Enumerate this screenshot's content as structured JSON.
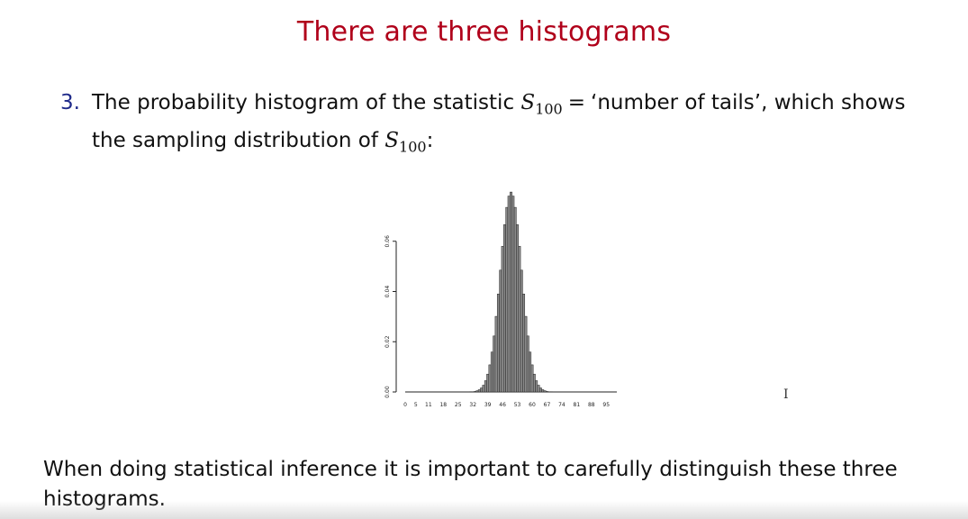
{
  "slide": {
    "title": "There are three histograms",
    "item_number": "3.",
    "text_before_var": "The probability histogram of the statistic",
    "var_letter": "S",
    "var_sub": "100",
    "equals": "=",
    "text_after_eq": "‘number of tails’, which shows",
    "line2_text": "the sampling distribution of",
    "line2_var_letter": "S",
    "line2_var_sub": "100",
    "line2_end": ":",
    "footer": "When doing statistical inference it is important to carefully distinguish these three histograms.",
    "cursor_glyph": "I"
  },
  "chart_data": {
    "type": "bar",
    "description_distribution": "binomial n=100, p=0.5",
    "x_tick_labels": [
      "0",
      "5",
      "11",
      "18",
      "25",
      "32",
      "39",
      "46",
      "53",
      "60",
      "67",
      "74",
      "81",
      "88",
      "95"
    ],
    "y_tick_labels": [
      "0.00",
      "0.02",
      "0.04",
      "0.06"
    ],
    "ylim": [
      0,
      0.08
    ],
    "xlim": [
      0,
      100
    ],
    "x": [
      30,
      31,
      32,
      33,
      34,
      35,
      36,
      37,
      38,
      39,
      40,
      41,
      42,
      43,
      44,
      45,
      46,
      47,
      48,
      49,
      50,
      51,
      52,
      53,
      54,
      55,
      56,
      57,
      58,
      59,
      60,
      61,
      62,
      63,
      64,
      65,
      66,
      67,
      68,
      69,
      70
    ],
    "values": [
      0.0,
      0.0001,
      0.0001,
      0.0002,
      0.0005,
      0.0009,
      0.0016,
      0.0027,
      0.0045,
      0.0071,
      0.0108,
      0.0159,
      0.0223,
      0.0301,
      0.039,
      0.0485,
      0.058,
      0.0666,
      0.0735,
      0.078,
      0.0796,
      0.078,
      0.0735,
      0.0666,
      0.058,
      0.0485,
      0.039,
      0.0301,
      0.0223,
      0.0159,
      0.0108,
      0.0071,
      0.0045,
      0.0027,
      0.0016,
      0.0009,
      0.0005,
      0.0002,
      0.0001,
      0.0001,
      0.0
    ],
    "bar_color": "#8c8c8c",
    "bar_stroke": "#222222"
  }
}
